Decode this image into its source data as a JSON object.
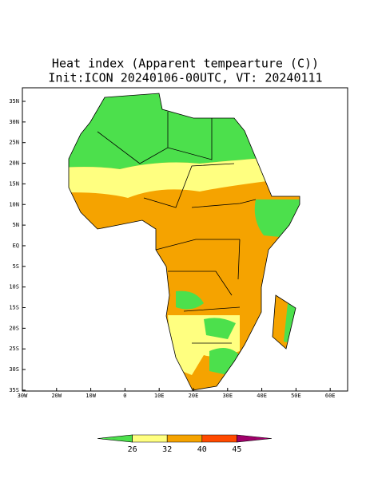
{
  "title": "Heat index (Apparent tempearture (C))",
  "subtitle": "Init:ICON 20240106-00UTC, VT: 20240111",
  "lat_ticks": [
    {
      "value": 35,
      "label": "35N"
    },
    {
      "value": 30,
      "label": "30N"
    },
    {
      "value": 25,
      "label": "25N"
    },
    {
      "value": 20,
      "label": "20N"
    },
    {
      "value": 15,
      "label": "15N"
    },
    {
      "value": 10,
      "label": "10N"
    },
    {
      "value": 5,
      "label": "5N"
    },
    {
      "value": 0,
      "label": "EQ"
    },
    {
      "value": -5,
      "label": "5S"
    },
    {
      "value": -10,
      "label": "10S"
    },
    {
      "value": -15,
      "label": "15S"
    },
    {
      "value": -20,
      "label": "20S"
    },
    {
      "value": -25,
      "label": "25S"
    },
    {
      "value": -30,
      "label": "30S"
    },
    {
      "value": -35,
      "label": "35S"
    }
  ],
  "lon_ticks": [
    {
      "value": -30,
      "label": "30W"
    },
    {
      "value": -20,
      "label": "20W"
    },
    {
      "value": -10,
      "label": "10W"
    },
    {
      "value": 0,
      "label": "0"
    },
    {
      "value": 10,
      "label": "10E"
    },
    {
      "value": 20,
      "label": "20E"
    },
    {
      "value": 30,
      "label": "30E"
    },
    {
      "value": 40,
      "label": "40E"
    },
    {
      "value": 50,
      "label": "50E"
    },
    {
      "value": 60,
      "label": "60E"
    }
  ],
  "colorbar": {
    "levels": [
      26,
      32,
      40,
      45
    ],
    "colors": [
      "#4ce04c",
      "#ffff80",
      "#f5a300",
      "#ff4a00",
      "#a0006a"
    ]
  }
}
